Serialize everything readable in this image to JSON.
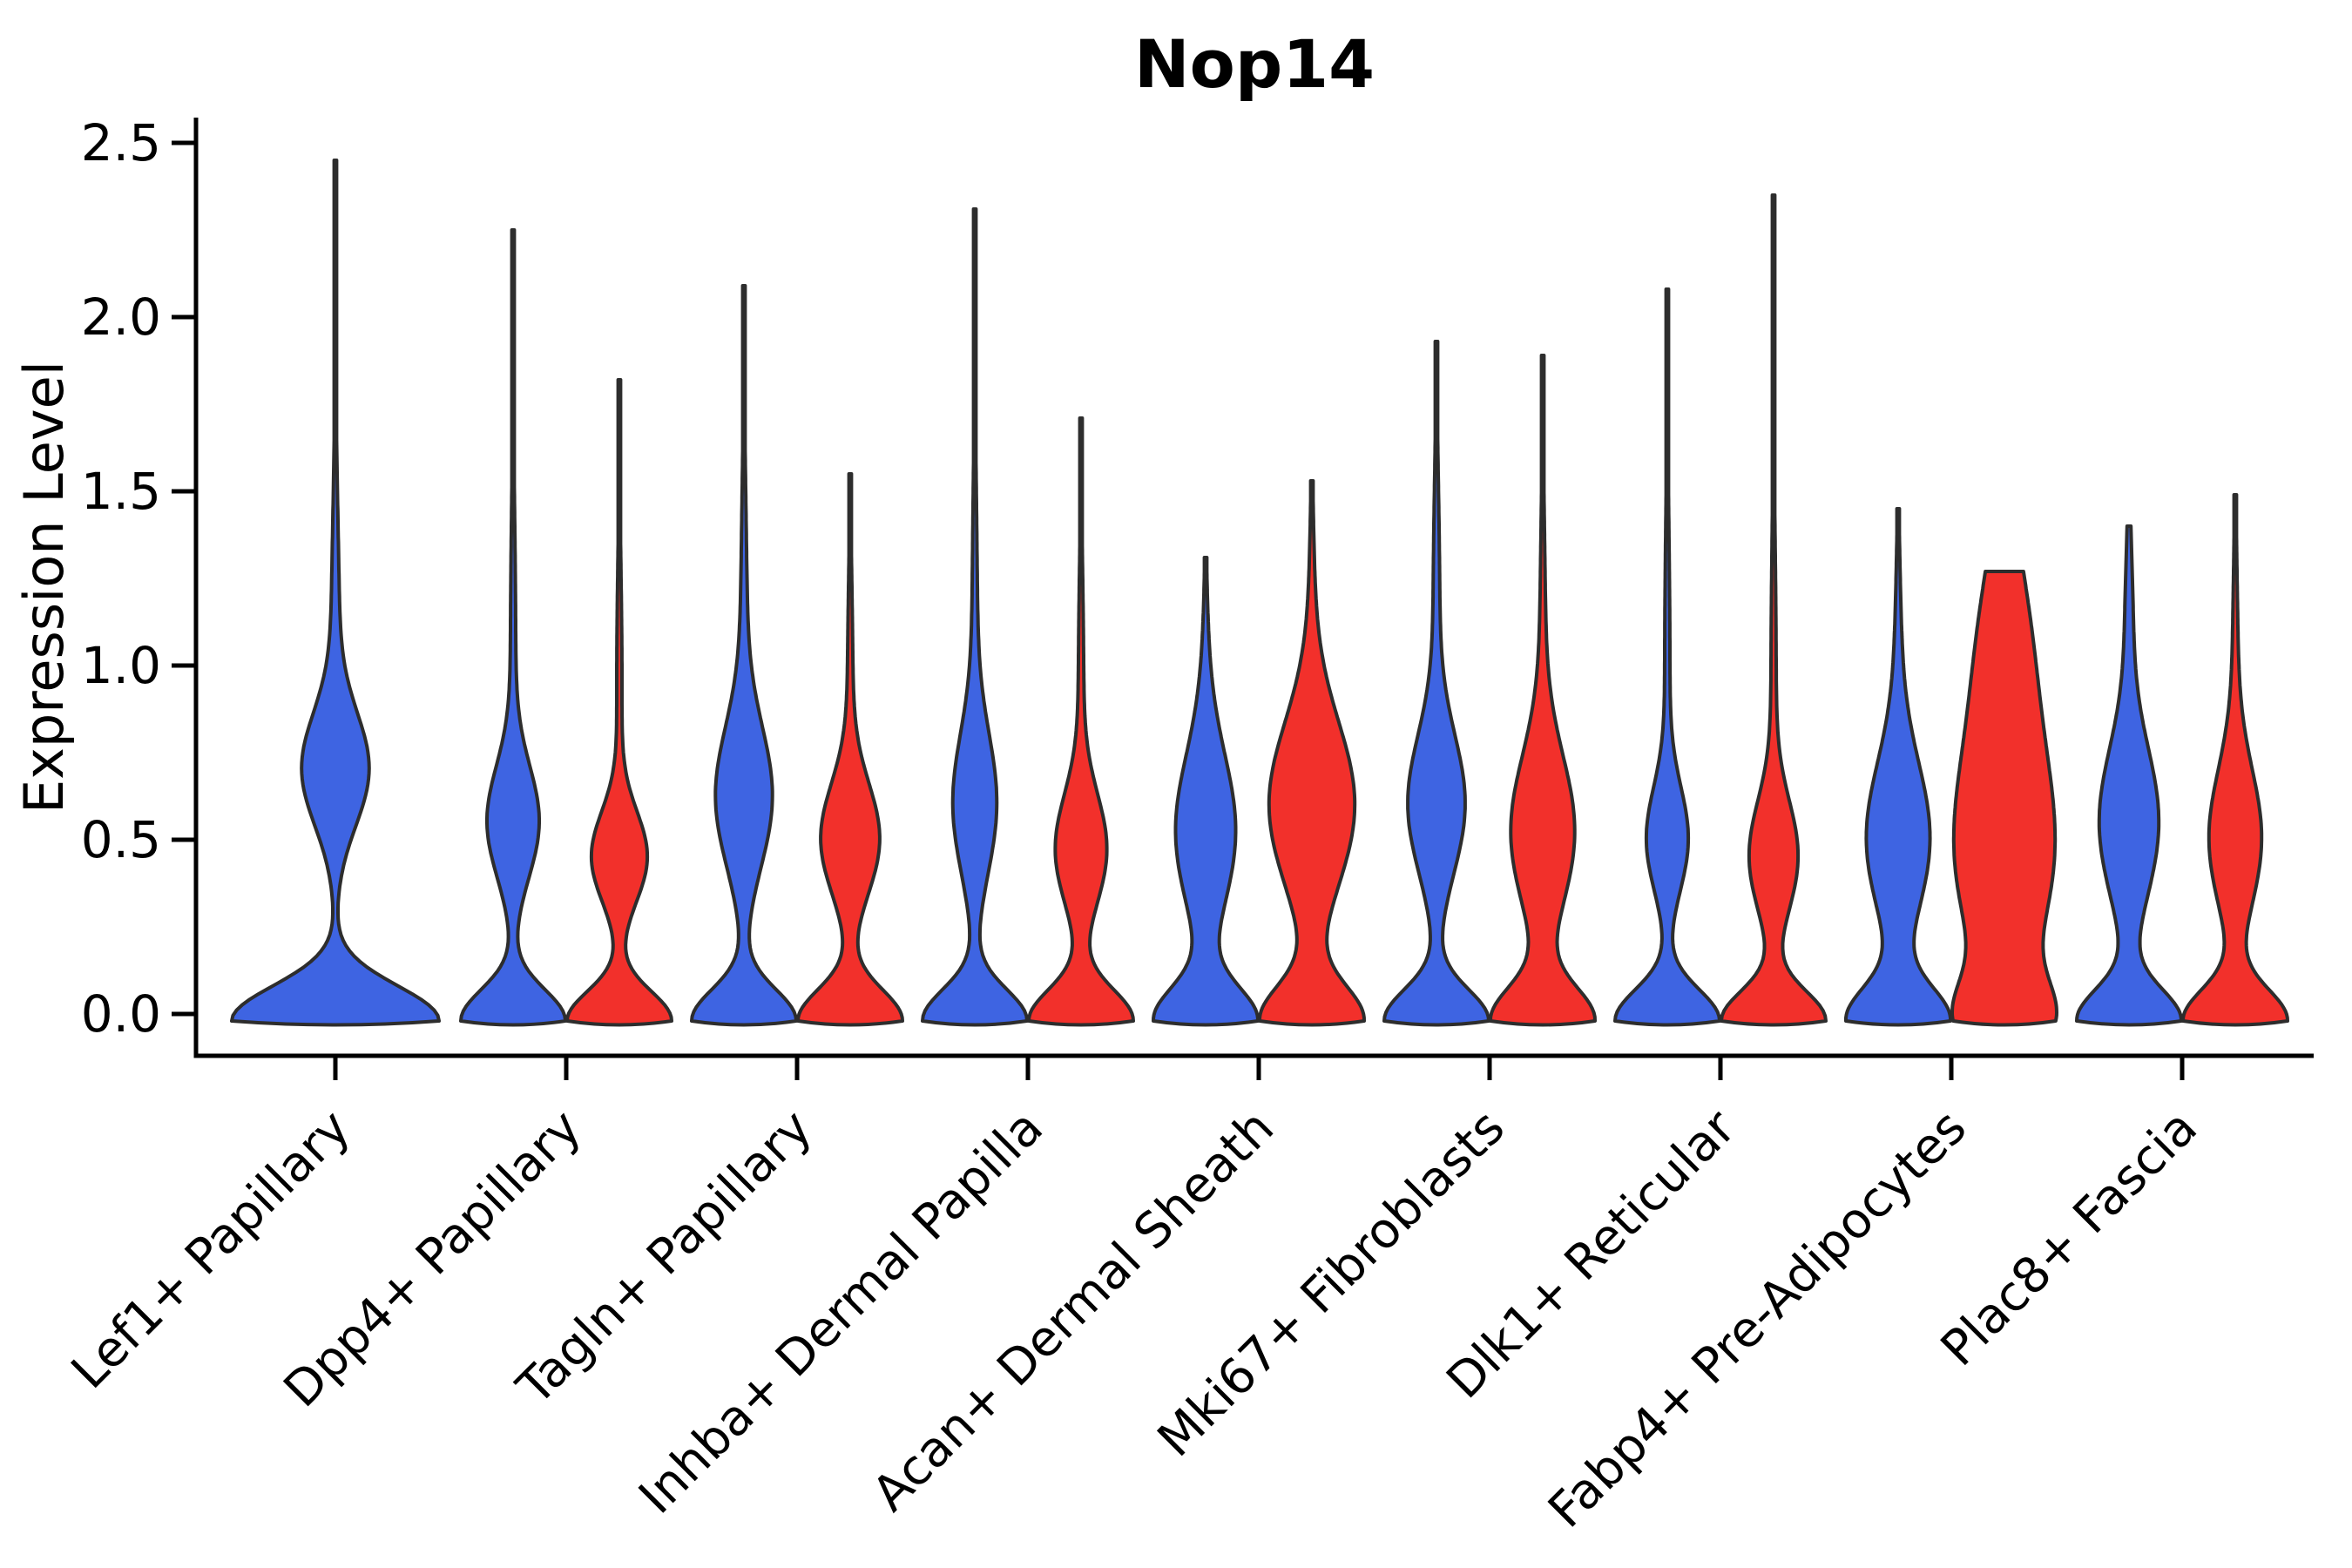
{
  "title": "Nop14",
  "ylabel": "Expression Level",
  "colors": {
    "blue_fill": "#3E64E2",
    "red_fill": "#F2302B",
    "outline": "#2d2d2d",
    "axis": "#000000",
    "text": "#000000",
    "background": "#ffffff"
  },
  "chart_data": {
    "type": "violin",
    "title": "Nop14",
    "xlabel": "",
    "ylabel": "Expression Level",
    "ylim": [
      -0.12,
      2.57
    ],
    "grid": false,
    "legend": "none",
    "yticks": [
      {
        "label": "0.0",
        "value": 0.0
      },
      {
        "label": "0.5",
        "value": 0.5
      },
      {
        "label": "1.0",
        "value": 1.0
      },
      {
        "label": "1.5",
        "value": 1.5
      },
      {
        "label": "2.0",
        "value": 2.0
      },
      {
        "label": "2.5",
        "value": 2.5
      }
    ],
    "categories": [
      "Lef1+ Papillary",
      "Dpp4+ Papillary",
      "Tagln+ Papillary",
      "Inhba+ Dermal Papilla",
      "Acan+ Dermal Sheath",
      "Mki67+ Fibroblasts",
      "Dlk1+ Reticular",
      "Fabp4+ Pre-Adipocytes",
      "Plac8+ Fascia"
    ],
    "series": [
      {
        "name": "blue",
        "color": "#3E64E2",
        "max_expression": [
          2.45,
          2.25,
          2.09,
          2.31,
          1.31,
          1.93,
          2.08,
          1.45,
          1.4
        ]
      },
      {
        "name": "red",
        "color": "#F2302B",
        "max_expression": [
          null,
          1.82,
          1.55,
          1.71,
          1.53,
          1.89,
          2.35,
          1.27,
          1.49
        ]
      }
    ],
    "violins": [
      {
        "category_index": 0,
        "side": "blue",
        "single_full_width": true,
        "vmax": 2.45,
        "density_components": [
          [
            1.0,
            -0.02,
            0.1
          ],
          [
            0.3,
            0.7,
            0.16
          ],
          [
            0.04,
            1.05,
            0.38
          ]
        ]
      },
      {
        "category_index": 1,
        "side": "blue",
        "single_full_width": false,
        "vmax": 2.25,
        "density_components": [
          [
            1.0,
            -0.02,
            0.09
          ],
          [
            0.48,
            0.55,
            0.16
          ],
          [
            0.05,
            1.05,
            0.38
          ]
        ]
      },
      {
        "category_index": 1,
        "side": "red",
        "single_full_width": false,
        "vmax": 1.82,
        "density_components": [
          [
            1.0,
            -0.02,
            0.085
          ],
          [
            0.52,
            0.45,
            0.13
          ],
          [
            0.05,
            0.95,
            0.33
          ]
        ]
      },
      {
        "category_index": 2,
        "side": "blue",
        "single_full_width": false,
        "vmax": 2.09,
        "density_components": [
          [
            1.0,
            -0.02,
            0.09
          ],
          [
            0.52,
            0.62,
            0.2
          ],
          [
            0.06,
            1.1,
            0.38
          ]
        ]
      },
      {
        "category_index": 2,
        "side": "red",
        "single_full_width": false,
        "vmax": 1.55,
        "density_components": [
          [
            1.0,
            -0.02,
            0.09
          ],
          [
            0.55,
            0.5,
            0.16
          ],
          [
            0.05,
            0.95,
            0.3
          ]
        ]
      },
      {
        "category_index": 3,
        "side": "blue",
        "single_full_width": false,
        "vmax": 2.31,
        "density_components": [
          [
            1.0,
            -0.02,
            0.09
          ],
          [
            0.4,
            0.6,
            0.2
          ],
          [
            0.05,
            1.1,
            0.4
          ]
        ]
      },
      {
        "category_index": 3,
        "side": "red",
        "single_full_width": false,
        "vmax": 1.71,
        "density_components": [
          [
            1.0,
            -0.02,
            0.09
          ],
          [
            0.48,
            0.47,
            0.16
          ],
          [
            0.05,
            0.95,
            0.32
          ]
        ]
      },
      {
        "category_index": 4,
        "side": "blue",
        "single_full_width": false,
        "vmax": 1.31,
        "density_components": [
          [
            1.0,
            -0.02,
            0.095
          ],
          [
            0.58,
            0.52,
            0.22
          ],
          [
            0.05,
            0.95,
            0.25
          ]
        ]
      },
      {
        "category_index": 4,
        "side": "red",
        "single_full_width": false,
        "vmax": 1.53,
        "density_components": [
          [
            0.95,
            -0.02,
            0.1
          ],
          [
            0.8,
            0.6,
            0.24
          ],
          [
            0.04,
            1.2,
            0.25
          ]
        ]
      },
      {
        "category_index": 5,
        "side": "blue",
        "single_full_width": false,
        "vmax": 1.93,
        "density_components": [
          [
            1.0,
            -0.02,
            0.09
          ],
          [
            0.54,
            0.6,
            0.2
          ],
          [
            0.06,
            1.2,
            0.33
          ]
        ]
      },
      {
        "category_index": 5,
        "side": "red",
        "single_full_width": false,
        "vmax": 1.89,
        "density_components": [
          [
            1.0,
            -0.02,
            0.095
          ],
          [
            0.62,
            0.52,
            0.22
          ],
          [
            0.05,
            1.1,
            0.33
          ]
        ]
      },
      {
        "category_index": 6,
        "side": "blue",
        "single_full_width": false,
        "vmax": 2.08,
        "density_components": [
          [
            1.0,
            -0.02,
            0.09
          ],
          [
            0.38,
            0.5,
            0.15
          ],
          [
            0.05,
            1.0,
            0.4
          ]
        ]
      },
      {
        "category_index": 6,
        "side": "red",
        "single_full_width": false,
        "vmax": 2.35,
        "density_components": [
          [
            1.0,
            -0.02,
            0.085
          ],
          [
            0.45,
            0.45,
            0.16
          ],
          [
            0.05,
            0.95,
            0.4
          ]
        ]
      },
      {
        "category_index": 7,
        "side": "blue",
        "single_full_width": false,
        "vmax": 1.45,
        "density_components": [
          [
            1.0,
            -0.02,
            0.095
          ],
          [
            0.62,
            0.5,
            0.22
          ],
          [
            0.06,
            1.0,
            0.28
          ]
        ]
      },
      {
        "category_index": 7,
        "side": "red",
        "single_full_width": false,
        "vmax": 1.27,
        "density_components": [
          [
            0.72,
            -0.02,
            0.11
          ],
          [
            0.9,
            0.45,
            0.3
          ],
          [
            0.45,
            1.05,
            0.3
          ]
        ]
      },
      {
        "category_index": 8,
        "side": "blue",
        "single_full_width": false,
        "vmax": 1.4,
        "density_components": [
          [
            1.0,
            -0.02,
            0.09
          ],
          [
            0.58,
            0.55,
            0.22
          ],
          [
            0.07,
            1.15,
            0.22
          ]
        ]
      },
      {
        "category_index": 8,
        "side": "red",
        "single_full_width": false,
        "vmax": 1.49,
        "density_components": [
          [
            1.0,
            -0.02,
            0.09
          ],
          [
            0.5,
            0.5,
            0.2
          ],
          [
            0.05,
            1.0,
            0.3
          ]
        ]
      }
    ]
  }
}
